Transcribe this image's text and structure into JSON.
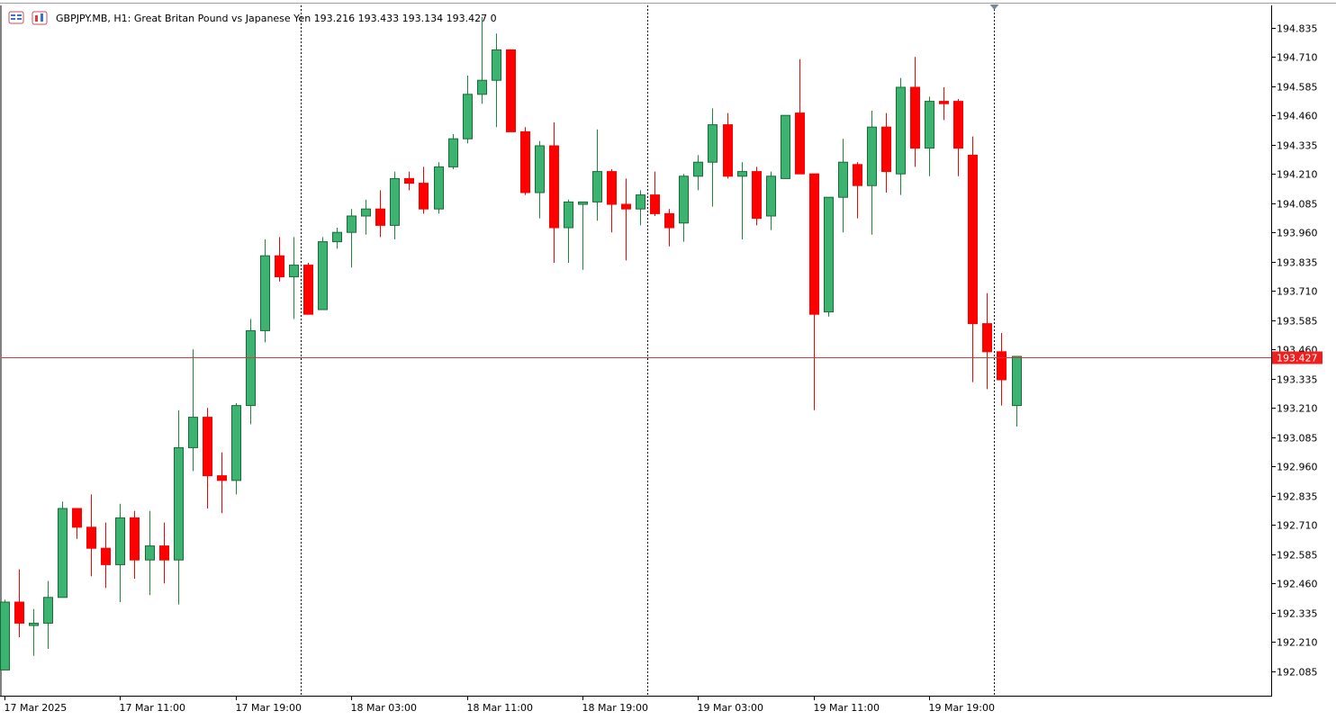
{
  "header": {
    "text": "GBPJPY.MB, H1:  Great Britan Pound vs Japanese Yen  193.216 193.433 193.134 193.427  0",
    "icons": [
      "window-list-icon",
      "chart-type-icon"
    ]
  },
  "colors": {
    "bull": "#3cb371",
    "bear": "#ff0000",
    "outline": "#000000",
    "current_line": "#d23c3c",
    "tag_bg": "#f01e1e",
    "grid_vline": "#000000"
  },
  "current_price": {
    "value": 193.427,
    "label": "193.427"
  },
  "chart_data": {
    "type": "candlestick",
    "symbol": "GBPJPY.MB",
    "timeframe": "H1",
    "ylim": [
      191.98,
      194.93
    ],
    "y_ticks": [
      192.085,
      192.21,
      192.335,
      192.46,
      192.585,
      192.71,
      192.835,
      192.96,
      193.085,
      193.21,
      193.335,
      193.46,
      193.585,
      193.71,
      193.835,
      193.96,
      194.085,
      194.21,
      194.335,
      194.46,
      194.585,
      194.71,
      194.835
    ],
    "y_tick_labels": [
      "192.085",
      "192.210",
      "192.335",
      "192.460",
      "192.585",
      "192.710",
      "192.835",
      "192.960",
      "193.085",
      "193.210",
      "193.335",
      "193.460",
      "193.585",
      "193.710",
      "193.835",
      "193.960",
      "194.085",
      "194.210",
      "194.335",
      "194.460",
      "194.585",
      "194.710",
      "194.835"
    ],
    "x_labels": [
      {
        "index": 0,
        "text": "17 Mar 2025"
      },
      {
        "index": 8,
        "text": "17 Mar 11:00"
      },
      {
        "index": 16,
        "text": "17 Mar 19:00"
      },
      {
        "index": 24,
        "text": "18 Mar 03:00"
      },
      {
        "index": 32,
        "text": "18 Mar 11:00"
      },
      {
        "index": 40,
        "text": "18 Mar 19:00"
      },
      {
        "index": 48,
        "text": "19 Mar 03:00"
      },
      {
        "index": 56,
        "text": "19 Mar 11:00"
      },
      {
        "index": 64,
        "text": "19 Mar 19:00"
      }
    ],
    "separators_after_index": [
      20.5,
      44.5,
      68.5
    ],
    "candles": [
      {
        "o": 192.09,
        "h": 192.39,
        "l": 192.09,
        "c": 192.38
      },
      {
        "o": 192.38,
        "h": 192.52,
        "l": 192.23,
        "c": 192.29
      },
      {
        "o": 192.28,
        "h": 192.35,
        "l": 192.15,
        "c": 192.29
      },
      {
        "o": 192.29,
        "h": 192.47,
        "l": 192.18,
        "c": 192.4
      },
      {
        "o": 192.4,
        "h": 192.81,
        "l": 192.4,
        "c": 192.78
      },
      {
        "o": 192.78,
        "h": 192.78,
        "l": 192.65,
        "c": 192.7
      },
      {
        "o": 192.7,
        "h": 192.84,
        "l": 192.49,
        "c": 192.61
      },
      {
        "o": 192.61,
        "h": 192.72,
        "l": 192.44,
        "c": 192.54
      },
      {
        "o": 192.54,
        "h": 192.8,
        "l": 192.38,
        "c": 192.74
      },
      {
        "o": 192.74,
        "h": 192.77,
        "l": 192.48,
        "c": 192.56
      },
      {
        "o": 192.56,
        "h": 192.77,
        "l": 192.41,
        "c": 192.62
      },
      {
        "o": 192.62,
        "h": 192.72,
        "l": 192.46,
        "c": 192.56
      },
      {
        "o": 192.56,
        "h": 193.2,
        "l": 192.37,
        "c": 193.04
      },
      {
        "o": 193.04,
        "h": 193.46,
        "l": 192.94,
        "c": 193.17
      },
      {
        "o": 193.17,
        "h": 193.21,
        "l": 192.78,
        "c": 192.92
      },
      {
        "o": 192.92,
        "h": 193.02,
        "l": 192.76,
        "c": 192.9
      },
      {
        "o": 192.9,
        "h": 193.23,
        "l": 192.84,
        "c": 193.22
      },
      {
        "o": 193.22,
        "h": 193.59,
        "l": 193.14,
        "c": 193.54
      },
      {
        "o": 193.54,
        "h": 193.93,
        "l": 193.49,
        "c": 193.86
      },
      {
        "o": 193.86,
        "h": 193.94,
        "l": 193.75,
        "c": 193.77
      },
      {
        "o": 193.77,
        "h": 193.94,
        "l": 193.59,
        "c": 193.82
      },
      {
        "o": 193.82,
        "h": 193.83,
        "l": 193.61,
        "c": 193.61
      },
      {
        "o": 193.63,
        "h": 193.94,
        "l": 193.63,
        "c": 193.92
      },
      {
        "o": 193.92,
        "h": 193.98,
        "l": 193.89,
        "c": 193.96
      },
      {
        "o": 193.96,
        "h": 194.06,
        "l": 193.81,
        "c": 194.03
      },
      {
        "o": 194.03,
        "h": 194.1,
        "l": 193.95,
        "c": 194.06
      },
      {
        "o": 194.06,
        "h": 194.14,
        "l": 193.94,
        "c": 193.99
      },
      {
        "o": 193.99,
        "h": 194.22,
        "l": 193.93,
        "c": 194.19
      },
      {
        "o": 194.19,
        "h": 194.22,
        "l": 194.14,
        "c": 194.17
      },
      {
        "o": 194.17,
        "h": 194.24,
        "l": 194.04,
        "c": 194.06
      },
      {
        "o": 194.06,
        "h": 194.26,
        "l": 194.04,
        "c": 194.24
      },
      {
        "o": 194.24,
        "h": 194.38,
        "l": 194.23,
        "c": 194.36
      },
      {
        "o": 194.36,
        "h": 194.63,
        "l": 194.34,
        "c": 194.55
      },
      {
        "o": 194.55,
        "h": 194.88,
        "l": 194.51,
        "c": 194.61
      },
      {
        "o": 194.61,
        "h": 194.81,
        "l": 194.41,
        "c": 194.74
      },
      {
        "o": 194.74,
        "h": 194.74,
        "l": 194.4,
        "c": 194.39
      },
      {
        "o": 194.39,
        "h": 194.41,
        "l": 194.12,
        "c": 194.13
      },
      {
        "o": 194.13,
        "h": 194.35,
        "l": 194.02,
        "c": 194.33
      },
      {
        "o": 194.33,
        "h": 194.43,
        "l": 193.83,
        "c": 193.98
      },
      {
        "o": 193.98,
        "h": 194.1,
        "l": 193.83,
        "c": 194.09
      },
      {
        "o": 194.08,
        "h": 194.09,
        "l": 193.8,
        "c": 194.09
      },
      {
        "o": 194.09,
        "h": 194.4,
        "l": 194.01,
        "c": 194.22
      },
      {
        "o": 194.22,
        "h": 194.23,
        "l": 193.96,
        "c": 194.08
      },
      {
        "o": 194.08,
        "h": 194.19,
        "l": 193.84,
        "c": 194.06
      },
      {
        "o": 194.06,
        "h": 194.14,
        "l": 193.99,
        "c": 194.12
      },
      {
        "o": 194.12,
        "h": 194.22,
        "l": 194.03,
        "c": 194.04
      },
      {
        "o": 194.04,
        "h": 194.06,
        "l": 193.9,
        "c": 193.98
      },
      {
        "o": 194.0,
        "h": 194.21,
        "l": 193.92,
        "c": 194.2
      },
      {
        "o": 194.2,
        "h": 194.29,
        "l": 194.14,
        "c": 194.26
      },
      {
        "o": 194.26,
        "h": 194.49,
        "l": 194.07,
        "c": 194.42
      },
      {
        "o": 194.42,
        "h": 194.47,
        "l": 194.19,
        "c": 194.2
      },
      {
        "o": 194.2,
        "h": 194.26,
        "l": 193.93,
        "c": 194.22
      },
      {
        "o": 194.22,
        "h": 194.24,
        "l": 193.99,
        "c": 194.02
      },
      {
        "o": 194.03,
        "h": 194.22,
        "l": 193.97,
        "c": 194.2
      },
      {
        "o": 194.19,
        "h": 194.46,
        "l": 194.19,
        "c": 194.46
      },
      {
        "o": 194.47,
        "h": 194.7,
        "l": 194.22,
        "c": 194.21
      },
      {
        "o": 194.21,
        "h": 194.21,
        "l": 193.2,
        "c": 193.61
      },
      {
        "o": 193.62,
        "h": 194.11,
        "l": 193.6,
        "c": 194.11
      },
      {
        "o": 194.11,
        "h": 194.36,
        "l": 193.96,
        "c": 194.26
      },
      {
        "o": 194.25,
        "h": 194.26,
        "l": 194.02,
        "c": 194.16
      },
      {
        "o": 194.16,
        "h": 194.48,
        "l": 193.95,
        "c": 194.41
      },
      {
        "o": 194.41,
        "h": 194.47,
        "l": 194.13,
        "c": 194.22
      },
      {
        "o": 194.21,
        "h": 194.62,
        "l": 194.12,
        "c": 194.58
      },
      {
        "o": 194.58,
        "h": 194.71,
        "l": 194.24,
        "c": 194.32
      },
      {
        "o": 194.32,
        "h": 194.54,
        "l": 194.2,
        "c": 194.52
      },
      {
        "o": 194.52,
        "h": 194.58,
        "l": 194.44,
        "c": 194.51
      },
      {
        "o": 194.52,
        "h": 194.53,
        "l": 194.2,
        "c": 194.32
      },
      {
        "o": 194.29,
        "h": 194.37,
        "l": 193.32,
        "c": 193.57
      },
      {
        "o": 193.57,
        "h": 193.7,
        "l": 193.29,
        "c": 193.45
      },
      {
        "o": 193.45,
        "h": 193.53,
        "l": 193.22,
        "c": 193.33
      },
      {
        "o": 193.22,
        "h": 193.43,
        "l": 193.13,
        "c": 193.43
      }
    ]
  }
}
